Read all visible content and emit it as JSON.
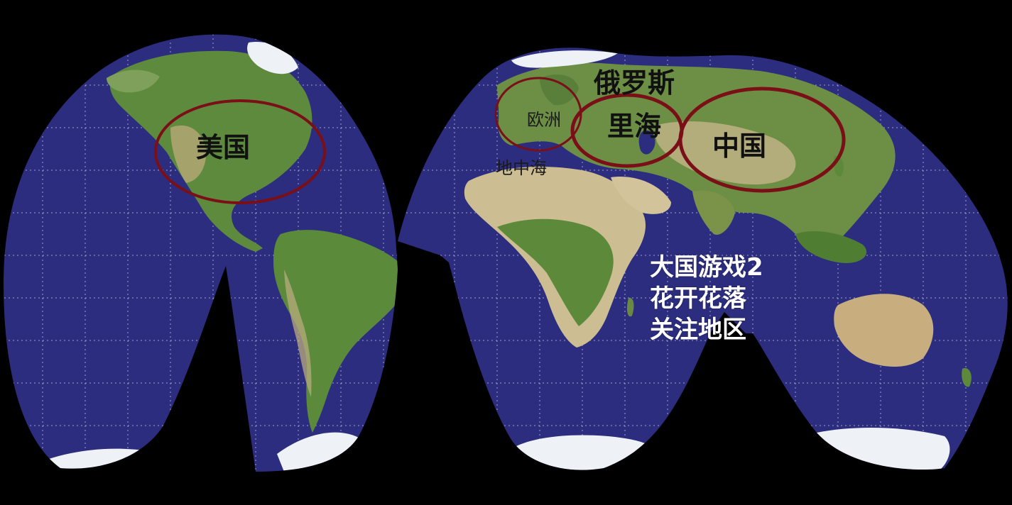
{
  "map": {
    "projection": "interrupted world map",
    "colors": {
      "ocean": "#2c2d7e",
      "land_green": "#5e8a3d",
      "land_desert": "#cdbd92",
      "ice": "#eef2f6",
      "grid": "#ffffff",
      "highlight_circle": "#7a0f17",
      "background": "#000000"
    }
  },
  "labels": {
    "usa": "美国",
    "russia": "俄罗斯",
    "caspian": "里海",
    "china": "中国",
    "europe": "欧洲",
    "mediterranean": "地中海"
  },
  "caption": {
    "line1": "大国游戏2",
    "line2": "花开花落",
    "line3": "关注地区"
  }
}
